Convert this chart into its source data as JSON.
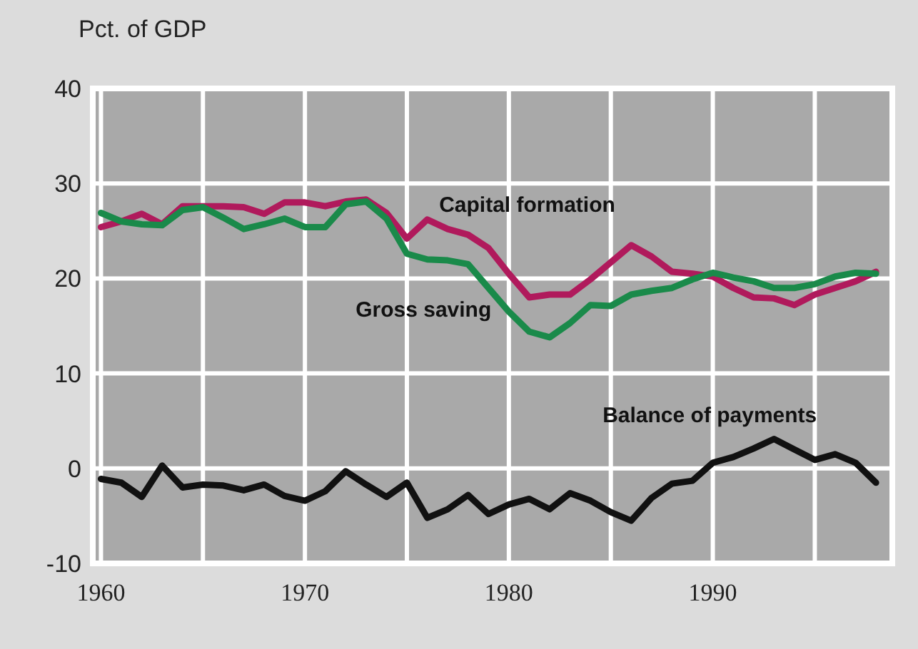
{
  "chart_data": {
    "type": "line",
    "ylabel": "Pct. of GDP",
    "x": [
      1960,
      1961,
      1962,
      1963,
      1964,
      1965,
      1966,
      1967,
      1968,
      1969,
      1970,
      1971,
      1972,
      1973,
      1974,
      1975,
      1976,
      1977,
      1978,
      1979,
      1980,
      1981,
      1982,
      1983,
      1984,
      1985,
      1986,
      1987,
      1988,
      1989,
      1990,
      1991,
      1992,
      1993,
      1994,
      1995,
      1996,
      1997,
      1998
    ],
    "series": [
      {
        "name": "Capital formation",
        "color": "#b01a5c",
        "values": [
          25.4,
          26,
          26.8,
          25.7,
          27.6,
          27.6,
          27.6,
          27.5,
          26.8,
          28,
          28,
          27.6,
          28.1,
          28.3,
          26.9,
          24.2,
          26.2,
          25.2,
          24.6,
          23.2,
          20.5,
          18,
          18.3,
          18.3,
          19.9,
          21.7,
          23.5,
          22.3,
          20.7,
          20.5,
          20.2,
          19,
          18,
          17.9,
          17.2,
          18.3,
          19,
          19.7,
          20.7
        ]
      },
      {
        "name": "Gross saving",
        "color": "#1a8a4a",
        "values": [
          26.9,
          26,
          25.7,
          25.6,
          27.2,
          27.5,
          26.4,
          25.2,
          25.7,
          26.3,
          25.4,
          25.4,
          27.8,
          28.1,
          26.3,
          22.6,
          22,
          21.9,
          21.5,
          19,
          16.5,
          14.4,
          13.8,
          15.3,
          17.2,
          17.1,
          18.3,
          18.7,
          19,
          19.9,
          20.6,
          20.1,
          19.7,
          19,
          19,
          19.4,
          20.2,
          20.6,
          20.5
        ]
      },
      {
        "name": "Balance of payments",
        "color": "#111111",
        "values": [
          -1.1,
          -1.5,
          -3,
          0.3,
          -2,
          -1.7,
          -1.8,
          -2.3,
          -1.7,
          -2.9,
          -3.4,
          -2.4,
          -0.3,
          -1.7,
          -3,
          -1.5,
          -5.2,
          -4.3,
          -2.8,
          -4.8,
          -3.8,
          -3.2,
          -4.3,
          -2.6,
          -3.4,
          -4.6,
          -5.5,
          -3.1,
          -1.6,
          -1.3,
          0.6,
          1.2,
          2.1,
          3.1,
          2,
          0.9,
          1.5,
          0.6,
          -1.5
        ]
      }
    ],
    "xlim": [
      1959.6,
      1998.8
    ],
    "xticks": [
      1960,
      {
        "value": 1965,
        "label": null
      },
      1970,
      {
        "value": 1975,
        "label": null
      },
      1980,
      {
        "value": 1985,
        "label": null
      },
      1990,
      {
        "value": 1995,
        "label": null
      }
    ],
    "ylim": [
      -10,
      40
    ],
    "yticks": [
      -10,
      0,
      10,
      20,
      30,
      40
    ],
    "grid": true,
    "line_style": "solid",
    "marker": "none"
  }
}
